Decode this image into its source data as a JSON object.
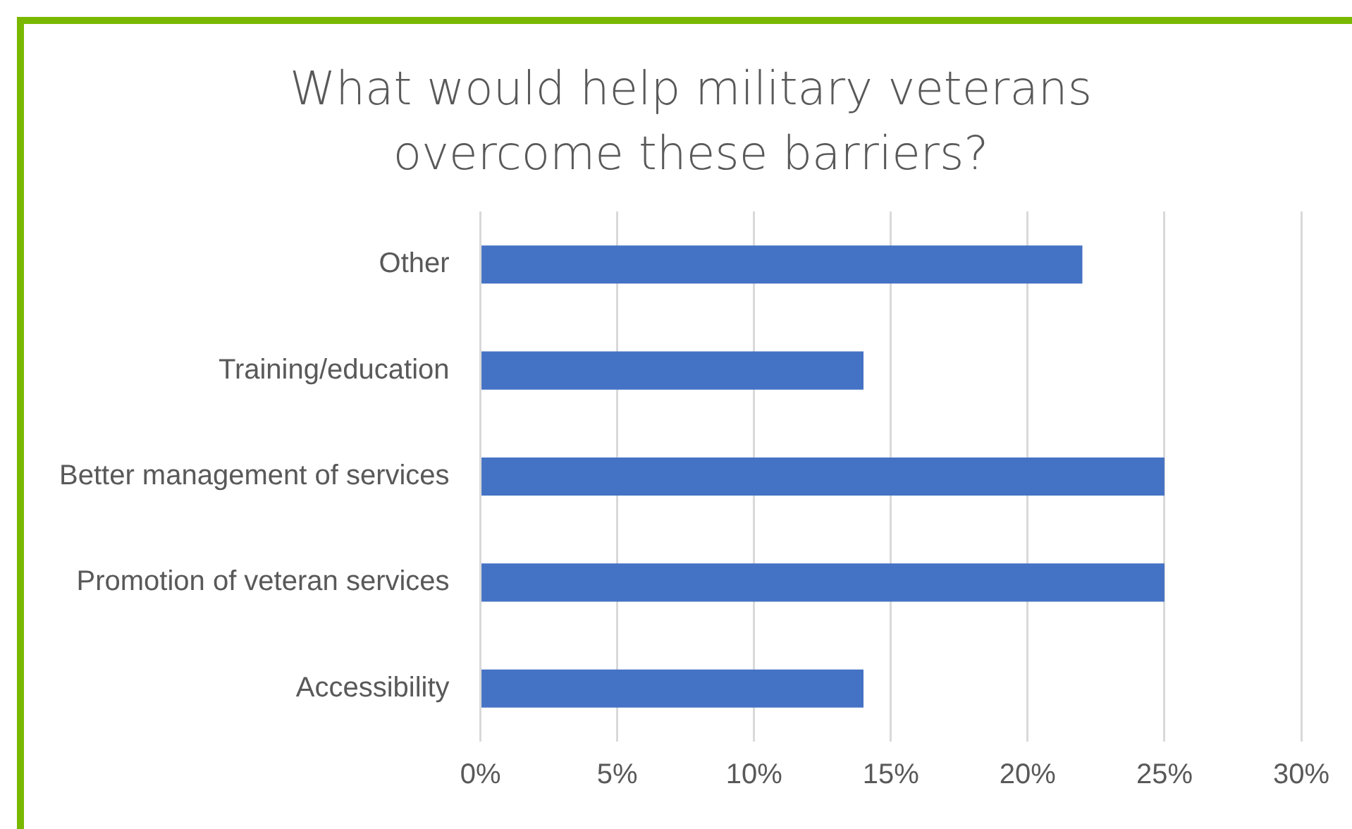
{
  "chart_data": {
    "type": "bar",
    "orientation": "horizontal",
    "title": "What would help military veterans overcome these barriers?",
    "categories": [
      "Other",
      "Training/education",
      "Better management of services",
      "Promotion of veteran services",
      "Accessibility"
    ],
    "values": [
      22,
      14,
      25,
      25,
      14
    ],
    "color": "#4472c4",
    "xlim": [
      0,
      30
    ],
    "xticks": [
      {
        "value": 0,
        "label": "0%"
      },
      {
        "value": 5,
        "label": "5%"
      },
      {
        "value": 10,
        "label": "10%"
      },
      {
        "value": 15,
        "label": "15%"
      },
      {
        "value": 20,
        "label": "20%"
      },
      {
        "value": 25,
        "label": "25%"
      },
      {
        "value": 30,
        "label": "30%"
      }
    ],
    "grid": "x",
    "legend": false
  }
}
